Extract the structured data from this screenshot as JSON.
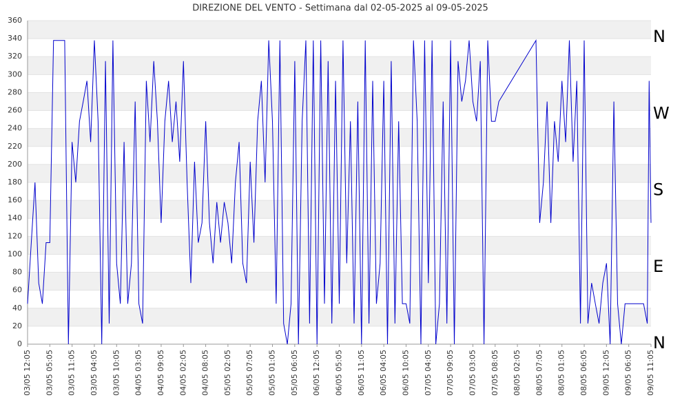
{
  "chart_data": {
    "type": "line",
    "title": "DIREZIONE DEL VENTO - Settimana dal 02-05-2025 al 09-05-2025",
    "compass_labels": [
      "N",
      "W",
      "S",
      "E",
      "N"
    ],
    "x": [
      0,
      1,
      2,
      3,
      4,
      5,
      6,
      7,
      8,
      9,
      10,
      11,
      12,
      13,
      14,
      15,
      16,
      17,
      18,
      19,
      20,
      21,
      22,
      23,
      24,
      25,
      26,
      27,
      28,
      29,
      30,
      31,
      32,
      33,
      34,
      35,
      36,
      37,
      38,
      39,
      40,
      41,
      42,
      43,
      44,
      45,
      46,
      47,
      48,
      49,
      50,
      51,
      52,
      53,
      54,
      55,
      56,
      57,
      58,
      59,
      60,
      61,
      62,
      63,
      64,
      65,
      66,
      67,
      68,
      69,
      70,
      71,
      72,
      73,
      74,
      75,
      76,
      77,
      78,
      79,
      80,
      81,
      82,
      83,
      84,
      85,
      86,
      87,
      88,
      89,
      90,
      91,
      92,
      93,
      94,
      95,
      96,
      97,
      98,
      99,
      100,
      101,
      102,
      103,
      104,
      105,
      106,
      107,
      108,
      109,
      110,
      111,
      112,
      113,
      114,
      115,
      116,
      117,
      118,
      119,
      120,
      121,
      122,
      123,
      124,
      125,
      126,
      127,
      137,
      138,
      139,
      140,
      141,
      142,
      143,
      144,
      145,
      146,
      147,
      148,
      149,
      150,
      151,
      152,
      153,
      154,
      155,
      156,
      157,
      158,
      159,
      160,
      161,
      162,
      163,
      164,
      165,
      166,
      167,
      167.5,
      168
    ],
    "series": [
      {
        "name": "Direzione",
        "color": "#0000cc",
        "values": [
          45,
          113,
          180,
          68,
          45,
          113,
          113,
          338,
          338,
          338,
          338,
          0,
          225,
          180,
          248,
          270,
          293,
          225,
          338,
          248,
          0,
          315,
          23,
          338,
          90,
          45,
          225,
          45,
          90,
          270,
          45,
          23,
          293,
          225,
          315,
          248,
          135,
          248,
          293,
          225,
          270,
          203,
          315,
          180,
          68,
          203,
          113,
          135,
          248,
          135,
          90,
          158,
          113,
          158,
          135,
          90,
          180,
          225,
          90,
          68,
          203,
          113,
          248,
          293,
          180,
          338,
          248,
          45,
          338,
          23,
          0,
          45,
          315,
          0,
          248,
          338,
          23,
          338,
          0,
          338,
          45,
          315,
          23,
          293,
          45,
          338,
          90,
          248,
          23,
          270,
          0,
          338,
          23,
          293,
          45,
          90,
          293,
          0,
          315,
          23,
          248,
          45,
          45,
          23,
          338,
          248,
          0,
          338,
          68,
          338,
          0,
          45,
          270,
          23,
          338,
          0,
          315,
          270,
          293,
          338,
          270,
          248,
          315,
          0,
          338,
          248,
          248,
          270,
          338,
          135,
          180,
          270,
          135,
          248,
          203,
          293,
          225,
          338,
          203,
          293,
          23,
          338,
          23,
          68,
          45,
          23,
          68,
          90,
          0,
          270,
          45,
          0,
          45,
          45,
          45,
          45,
          45,
          45,
          23,
          293,
          135
        ]
      }
    ],
    "xlim": [
      0,
      168
    ],
    "xticks": [
      {
        "value": 0,
        "label": "03/05 12:05"
      },
      {
        "value": 6,
        "label": "03/05 05:05"
      },
      {
        "value": 12,
        "label": "03/05 11:05"
      },
      {
        "value": 18,
        "label": "03/05 04:05"
      },
      {
        "value": 24,
        "label": "03/05 10:05"
      },
      {
        "value": 30,
        "label": "04/05 03:05"
      },
      {
        "value": 36,
        "label": "04/05 09:05"
      },
      {
        "value": 42,
        "label": "04/05 02:05"
      },
      {
        "value": 48,
        "label": "04/05 08:05"
      },
      {
        "value": 54,
        "label": "05/05 02:05"
      },
      {
        "value": 60,
        "label": "05/05 07:05"
      },
      {
        "value": 66,
        "label": "05/05 01:05"
      },
      {
        "value": 72,
        "label": "05/05 06:05"
      },
      {
        "value": 78,
        "label": "06/05 12:05"
      },
      {
        "value": 84,
        "label": "06/05 05:05"
      },
      {
        "value": 90,
        "label": "06/05 11:05"
      },
      {
        "value": 96,
        "label": "06/05 04:05"
      },
      {
        "value": 102,
        "label": "06/05 10:05"
      },
      {
        "value": 108,
        "label": "07/05 04:05"
      },
      {
        "value": 114,
        "label": "07/05 09:05"
      },
      {
        "value": 120,
        "label": "07/05 03:05"
      },
      {
        "value": 126,
        "label": "07/05 08:05"
      },
      {
        "value": 132,
        "label": "08/05 02:05"
      },
      {
        "value": 138,
        "label": "08/05 07:05"
      },
      {
        "value": 144,
        "label": "08/05 01:05"
      },
      {
        "value": 150,
        "label": "08/05 06:05"
      },
      {
        "value": 156,
        "label": "09/05 12:05"
      },
      {
        "value": 162,
        "label": "09/05 06:05"
      },
      {
        "value": 168,
        "label": "09/05 11:05"
      }
    ],
    "ylim": [
      0,
      360
    ],
    "yticks": [
      0,
      20,
      40,
      60,
      80,
      100,
      120,
      140,
      160,
      180,
      200,
      220,
      240,
      260,
      280,
      300,
      320,
      340,
      360
    ],
    "grid": true
  }
}
